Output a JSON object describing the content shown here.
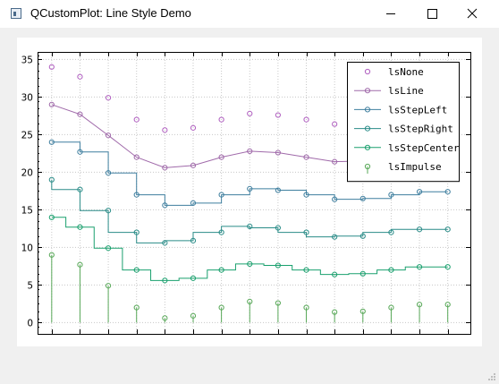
{
  "window": {
    "title": "QCustomPlot: Line Style Demo"
  },
  "colors": {
    "ls_none": "#b05fc0",
    "ls_line": "#a06aaa",
    "ls_step_left": "#3f7f9f",
    "ls_step_right": "#2a8c88",
    "ls_step_center": "#1aa06e",
    "ls_impulse": "#58a858"
  },
  "chart_data": {
    "type": "line",
    "title": "",
    "xlabel": "",
    "ylabel": "",
    "xlim": [
      -0.5,
      14.8
    ],
    "ylim": [
      -1.5,
      36
    ],
    "x_ticks": [],
    "y_ticks": [
      0,
      5,
      10,
      15,
      20,
      25,
      30,
      35
    ],
    "grid": true,
    "legend_position": "top-right",
    "x": [
      0,
      1,
      2,
      3,
      4,
      5,
      6,
      7,
      8,
      9,
      10,
      11,
      12,
      13,
      14
    ],
    "series": [
      {
        "name": "lsNone",
        "style": "none",
        "color_key": "ls_none",
        "values": [
          34,
          32.7,
          29.9,
          27,
          25.6,
          25.9,
          27,
          27.8,
          27.6,
          27,
          26.4,
          26.5,
          27,
          27.4,
          27.4
        ]
      },
      {
        "name": "lsLine",
        "style": "line",
        "color_key": "ls_line",
        "values": [
          29,
          27.7,
          24.9,
          22,
          20.6,
          20.9,
          22,
          22.8,
          22.6,
          22,
          21.4,
          21.5,
          22,
          22.4,
          22.4
        ]
      },
      {
        "name": "lsStepLeft",
        "style": "stepLeft",
        "color_key": "ls_step_left",
        "values": [
          24,
          22.7,
          19.9,
          17,
          15.6,
          15.9,
          17,
          17.8,
          17.6,
          17,
          16.4,
          16.5,
          17,
          17.4,
          17.4
        ]
      },
      {
        "name": "lsStepRight",
        "style": "stepRight",
        "color_key": "ls_step_right",
        "values": [
          19,
          17.7,
          14.9,
          12,
          10.6,
          10.9,
          12,
          12.8,
          12.6,
          12,
          11.4,
          11.5,
          12,
          12.4,
          12.4
        ]
      },
      {
        "name": "lsStepCenter",
        "style": "stepCenter",
        "color_key": "ls_step_center",
        "values": [
          14,
          12.7,
          9.9,
          7,
          5.6,
          5.9,
          7,
          7.8,
          7.6,
          7,
          6.4,
          6.5,
          7,
          7.4,
          7.4
        ]
      },
      {
        "name": "lsImpulse",
        "style": "impulse",
        "color_key": "ls_impulse",
        "values": [
          9,
          7.7,
          4.9,
          2,
          0.6,
          0.9,
          2,
          2.8,
          2.6,
          2,
          1.4,
          1.5,
          2,
          2.4,
          2.4
        ]
      }
    ]
  }
}
